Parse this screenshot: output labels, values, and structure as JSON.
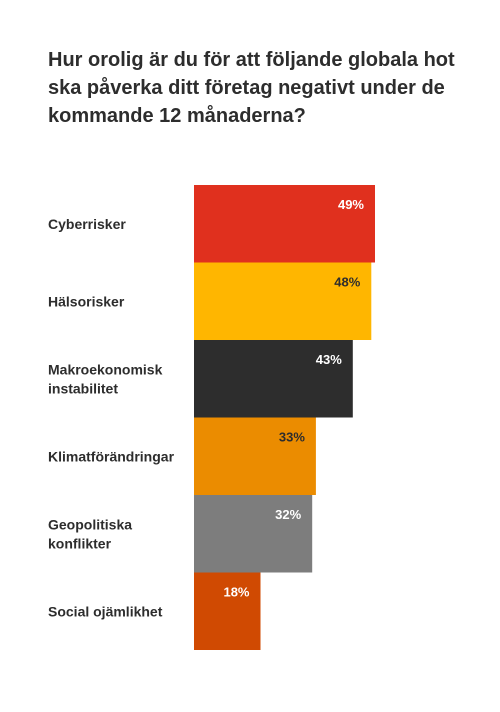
{
  "chart_data": {
    "type": "bar",
    "orientation": "horizontal",
    "title": "Hur orolig är du för att följande globala hot ska påverka ditt företag negativt under de kommande 12 månaderna?",
    "categories": [
      [
        "Cyberrisker"
      ],
      [
        "Hälsorisker"
      ],
      [
        "Makroekonomisk",
        "instabilitet"
      ],
      [
        "Klimatförändringar"
      ],
      [
        "Geopolitiska",
        "konflikter"
      ],
      [
        "Social ojämlikhet"
      ]
    ],
    "values": [
      49,
      48,
      43,
      33,
      32,
      18
    ],
    "value_labels": [
      "49%",
      "48%",
      "43%",
      "33%",
      "32%",
      "18%"
    ],
    "colors": [
      "#e0301e",
      "#ffb600",
      "#2d2d2d",
      "#eb8c00",
      "#7d7d7d",
      "#d04a02"
    ],
    "label_colors": [
      "#ffffff",
      "#2d2d2d",
      "#ffffff",
      "#2d2d2d",
      "#ffffff",
      "#ffffff"
    ],
    "unit": "%",
    "xlim": [
      0,
      49
    ],
    "grid": false,
    "legend": "none"
  }
}
